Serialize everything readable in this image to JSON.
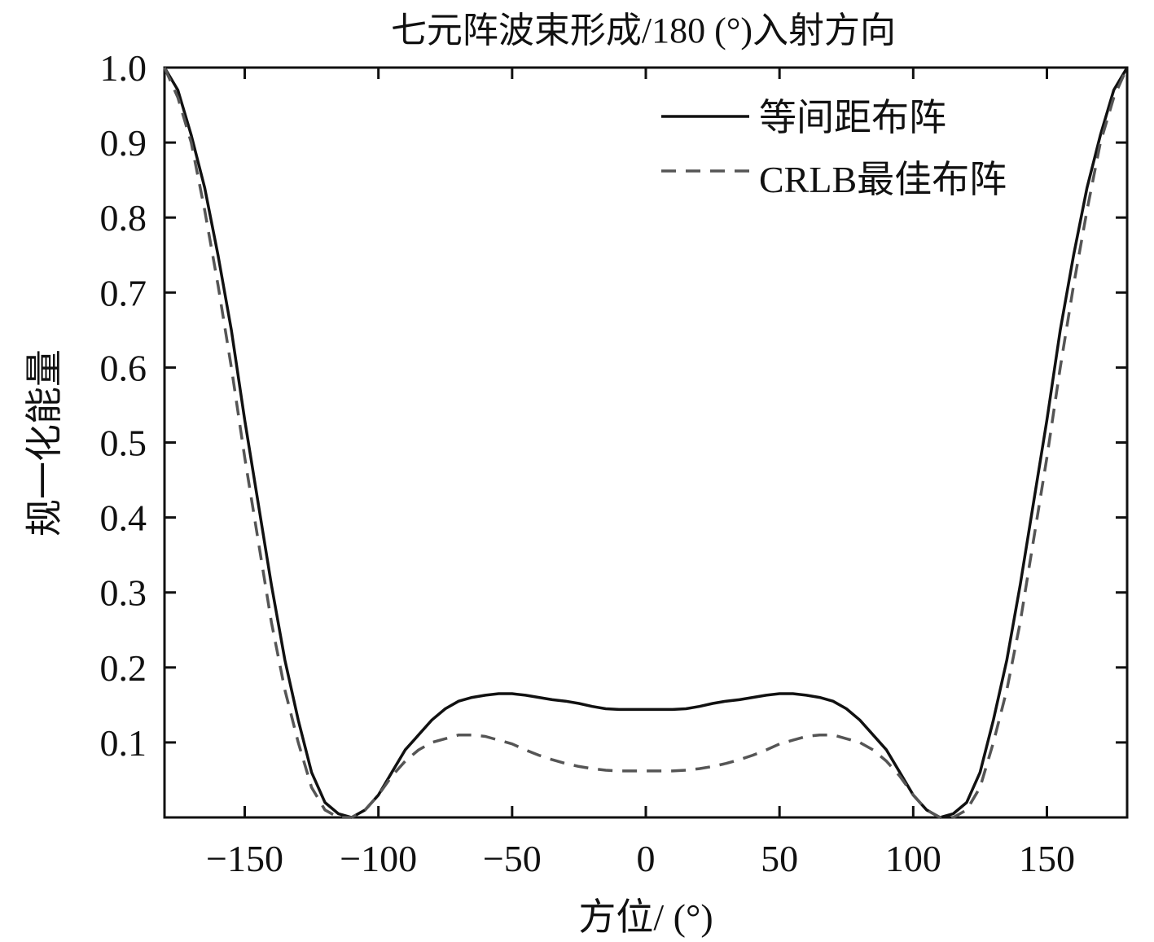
{
  "chart_data": {
    "type": "line",
    "title": "七元阵波束形成/180 (°)入射方向",
    "xlabel": "方位/ (°)",
    "ylabel": "规一化能量",
    "xlim": [
      -180,
      180
    ],
    "ylim": [
      0,
      1.0
    ],
    "xticks": [
      -150,
      -100,
      -50,
      0,
      50,
      100,
      150
    ],
    "xtick_labels": [
      "−150",
      "−100",
      "−50",
      "0",
      "50",
      "100",
      "150"
    ],
    "yticks": [
      0.1,
      0.2,
      0.3,
      0.4,
      0.5,
      0.6,
      0.7,
      0.8,
      0.9,
      1.0
    ],
    "ytick_labels": [
      "0.1",
      "0.2",
      "0.3",
      "0.4",
      "0.5",
      "0.6",
      "0.7",
      "0.8",
      "0.9",
      "1.0"
    ],
    "grid": false,
    "legend_position": "top-right",
    "colors": {
      "solid": "#111111",
      "dashed": "#555555"
    },
    "series": [
      {
        "name": "等间距布阵",
        "style": "solid",
        "x": [
          -180,
          -175,
          -170,
          -165,
          -160,
          -155,
          -150,
          -145,
          -140,
          -135,
          -130,
          -125,
          -120,
          -115,
          -110,
          -105,
          -100,
          -95,
          -90,
          -85,
          -80,
          -75,
          -70,
          -65,
          -60,
          -55,
          -50,
          -45,
          -40,
          -35,
          -30,
          -25,
          -20,
          -15,
          -10,
          -5,
          0,
          5,
          10,
          15,
          20,
          25,
          30,
          35,
          40,
          45,
          50,
          55,
          60,
          65,
          70,
          75,
          80,
          85,
          90,
          95,
          100,
          105,
          110,
          115,
          120,
          125,
          130,
          135,
          140,
          145,
          150,
          155,
          160,
          165,
          170,
          175,
          180
        ],
        "y": [
          1.0,
          0.97,
          0.91,
          0.84,
          0.75,
          0.65,
          0.53,
          0.42,
          0.31,
          0.21,
          0.13,
          0.06,
          0.02,
          0.005,
          0.0,
          0.01,
          0.03,
          0.06,
          0.09,
          0.11,
          0.13,
          0.145,
          0.155,
          0.16,
          0.163,
          0.165,
          0.165,
          0.163,
          0.16,
          0.157,
          0.155,
          0.152,
          0.148,
          0.145,
          0.144,
          0.144,
          0.144,
          0.144,
          0.144,
          0.145,
          0.148,
          0.152,
          0.155,
          0.157,
          0.16,
          0.163,
          0.165,
          0.165,
          0.163,
          0.16,
          0.155,
          0.145,
          0.13,
          0.11,
          0.09,
          0.06,
          0.03,
          0.01,
          0.0,
          0.005,
          0.02,
          0.06,
          0.13,
          0.21,
          0.31,
          0.42,
          0.53,
          0.65,
          0.75,
          0.84,
          0.91,
          0.97,
          1.0
        ]
      },
      {
        "name": "CRLB最佳布阵",
        "style": "dashed",
        "x": [
          -180,
          -175,
          -170,
          -165,
          -160,
          -155,
          -150,
          -145,
          -140,
          -135,
          -130,
          -125,
          -120,
          -115,
          -110,
          -105,
          -100,
          -95,
          -90,
          -85,
          -80,
          -75,
          -70,
          -65,
          -60,
          -55,
          -50,
          -45,
          -40,
          -35,
          -30,
          -25,
          -20,
          -15,
          -10,
          -5,
          0,
          5,
          10,
          15,
          20,
          25,
          30,
          35,
          40,
          45,
          50,
          55,
          60,
          65,
          70,
          75,
          80,
          85,
          90,
          95,
          100,
          105,
          110,
          115,
          120,
          125,
          130,
          135,
          140,
          145,
          150,
          155,
          160,
          165,
          170,
          175,
          180
        ],
        "y": [
          1.0,
          0.96,
          0.9,
          0.81,
          0.71,
          0.6,
          0.48,
          0.37,
          0.26,
          0.17,
          0.1,
          0.04,
          0.01,
          0.0,
          0.0,
          0.01,
          0.03,
          0.055,
          0.075,
          0.09,
          0.1,
          0.105,
          0.11,
          0.11,
          0.108,
          0.103,
          0.098,
          0.09,
          0.083,
          0.077,
          0.072,
          0.068,
          0.065,
          0.063,
          0.062,
          0.062,
          0.062,
          0.062,
          0.062,
          0.063,
          0.065,
          0.068,
          0.072,
          0.077,
          0.083,
          0.09,
          0.098,
          0.103,
          0.108,
          0.11,
          0.11,
          0.105,
          0.1,
          0.09,
          0.075,
          0.055,
          0.03,
          0.01,
          0.0,
          0.0,
          0.01,
          0.04,
          0.1,
          0.17,
          0.26,
          0.37,
          0.48,
          0.6,
          0.71,
          0.81,
          0.9,
          0.96,
          1.0
        ]
      }
    ]
  }
}
